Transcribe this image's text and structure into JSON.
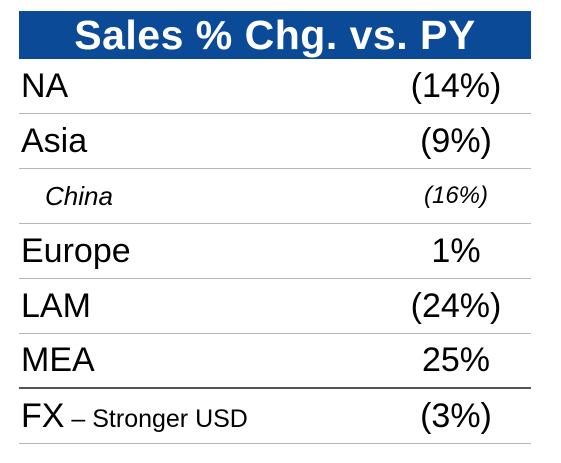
{
  "table": {
    "title": "Sales % Chg. vs. PY",
    "rows": [
      {
        "label": "NA",
        "value": "(14%)"
      },
      {
        "label": "Asia",
        "value": "(9%)"
      },
      {
        "label": "China",
        "value": "(16%)"
      },
      {
        "label": "Europe",
        "value": "1%"
      },
      {
        "label": "LAM",
        "value": "(24%)"
      },
      {
        "label": "MEA",
        "value": "25%"
      }
    ],
    "fx": {
      "label": "FX",
      "note": " – Stronger USD",
      "value": "(3%)"
    }
  },
  "colors": {
    "header_background": "#0b4a96",
    "header_text": "#ffffff"
  }
}
